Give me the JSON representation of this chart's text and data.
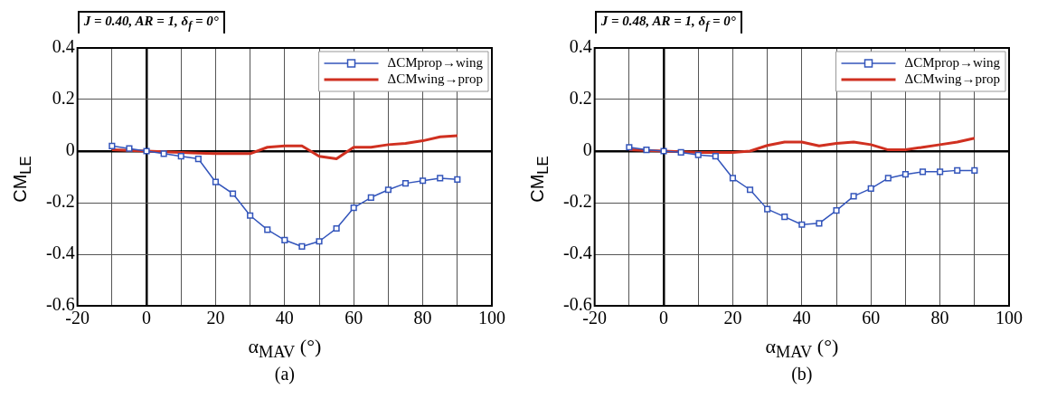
{
  "chart_data": [
    {
      "type": "line",
      "title": "J = 0.40, AR = 1, δ$_{f}$ = 0°",
      "xlabel": "α$_{MAV}$ (°)",
      "ylabel": "CM$_{LE}$",
      "annotations": [
        "(a)"
      ],
      "x": [
        -10,
        -5,
        0,
        5,
        10,
        15,
        20,
        25,
        30,
        35,
        40,
        45,
        50,
        55,
        60,
        65,
        70,
        75,
        80,
        85,
        90
      ],
      "series": [
        {
          "name": "ΔCMprop→wing",
          "color": "#3355bb",
          "marker": "square",
          "values": [
            0.02,
            0.01,
            0,
            -0.01,
            -0.02,
            -0.03,
            -0.12,
            -0.165,
            -0.25,
            -0.305,
            -0.345,
            -0.37,
            -0.35,
            -0.3,
            -0.22,
            -0.18,
            -0.15,
            -0.125,
            -0.115,
            -0.105,
            -0.11
          ]
        },
        {
          "name": "ΔCMwing→prop",
          "color": "#d03020",
          "marker": "none",
          "values": [
            0.005,
            0.003,
            0,
            -0.003,
            -0.005,
            -0.008,
            -0.01,
            -0.01,
            -0.01,
            0.015,
            0.02,
            0.02,
            -0.02,
            -0.03,
            0.015,
            0.015,
            0.025,
            0.03,
            0.04,
            0.055,
            0.06
          ]
        }
      ],
      "xlim": [
        -20,
        100
      ],
      "ylim": [
        -0.6,
        0.4
      ],
      "xticks": [
        -20,
        {
          "value": -10,
          "label": null
        },
        0,
        {
          "value": 10,
          "label": null
        },
        20,
        {
          "value": 30,
          "label": null
        },
        40,
        {
          "value": 50,
          "label": null
        },
        60,
        {
          "value": 70,
          "label": null
        },
        80,
        {
          "value": 90,
          "label": null
        },
        100
      ],
      "yticks": [
        -0.6,
        -0.4,
        -0.2,
        0,
        0.2,
        0.4
      ],
      "grid": true,
      "legend": "top right"
    },
    {
      "type": "line",
      "title": "J = 0.48, AR = 1, δ$_{f}$ = 0°",
      "xlabel": "α$_{MAV}$ (°)",
      "ylabel": "CM$_{LE}$",
      "annotations": [
        "(b)"
      ],
      "x": [
        -10,
        -5,
        0,
        5,
        10,
        15,
        20,
        25,
        30,
        35,
        40,
        45,
        50,
        55,
        60,
        65,
        70,
        75,
        80,
        85,
        90
      ],
      "series": [
        {
          "name": "ΔCMprop→wing",
          "color": "#3355bb",
          "marker": "square",
          "values": [
            0.015,
            0.005,
            0,
            -0.005,
            -0.015,
            -0.02,
            -0.105,
            -0.15,
            -0.225,
            -0.255,
            -0.285,
            -0.28,
            -0.23,
            -0.175,
            -0.145,
            -0.105,
            -0.09,
            -0.08,
            -0.08,
            -0.075,
            -0.075
          ]
        },
        {
          "name": "ΔCMwing→prop",
          "color": "#d03020",
          "marker": "none",
          "values": [
            0.005,
            0.003,
            0,
            -0.003,
            -0.005,
            -0.005,
            -0.005,
            0,
            0.022,
            0.035,
            0.035,
            0.02,
            0.03,
            0.035,
            0.025,
            0.005,
            0.005,
            0.015,
            0.025,
            0.035,
            0.05
          ]
        }
      ],
      "xlim": [
        -20,
        100
      ],
      "ylim": [
        -0.6,
        0.4
      ],
      "xticks": [
        -20,
        {
          "value": -10,
          "label": null
        },
        0,
        {
          "value": 10,
          "label": null
        },
        20,
        {
          "value": 30,
          "label": null
        },
        40,
        {
          "value": 50,
          "label": null
        },
        60,
        {
          "value": 70,
          "label": null
        },
        80,
        {
          "value": 90,
          "label": null
        },
        100
      ],
      "yticks": [
        -0.6,
        -0.4,
        -0.2,
        0,
        0.2,
        0.4
      ],
      "grid": true,
      "legend": "top right"
    }
  ]
}
